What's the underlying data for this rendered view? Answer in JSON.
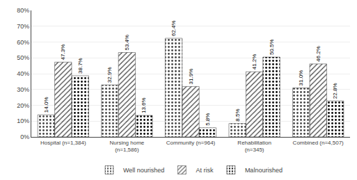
{
  "chart_data": {
    "type": "bar",
    "categories": [
      "Hospital (n=1,384)",
      "Nursing home\n(n=1,586)",
      "Community (n=964)",
      "Rehabilitation\n(n=345)",
      "Combined (n=4,507)"
    ],
    "series": [
      {
        "name": "Well nourished",
        "color": "#d8d8d8",
        "values": [
          14.0,
          32.9,
          62.4,
          8.5,
          31.0
        ],
        "value_labels": [
          "14.0%",
          "32.9%",
          "62.4%",
          "8.5%",
          "31.0%"
        ]
      },
      {
        "name": "At risk",
        "color": "#909090",
        "values": [
          47.3,
          53.4,
          31.9,
          41.2,
          46.2
        ],
        "value_labels": [
          "47.3%",
          "53.4%",
          "31.9%",
          "41.2%",
          "46.2%"
        ]
      },
      {
        "name": "Malnourished",
        "color": "#282828",
        "values": [
          38.7,
          13.6,
          5.8,
          50.5,
          22.8
        ],
        "value_labels": [
          "38.7%",
          "13.6%",
          "5.8%",
          "50.5%",
          "22.8%"
        ]
      }
    ],
    "ylim": [
      0,
      80
    ],
    "yticks": [
      {
        "value": 0,
        "label": "0%"
      },
      {
        "value": 10,
        "label": "10%"
      },
      {
        "value": 20,
        "label": "20%"
      },
      {
        "value": 30,
        "label": "30%"
      },
      {
        "value": 40,
        "label": "40%"
      },
      {
        "value": 50,
        "label": "50%"
      },
      {
        "value": 60,
        "label": "60%"
      },
      {
        "value": 70,
        "label": "70%"
      },
      {
        "value": 80,
        "label": "80%"
      }
    ],
    "grid": true,
    "legend": "bottom",
    "data_labels": true
  }
}
